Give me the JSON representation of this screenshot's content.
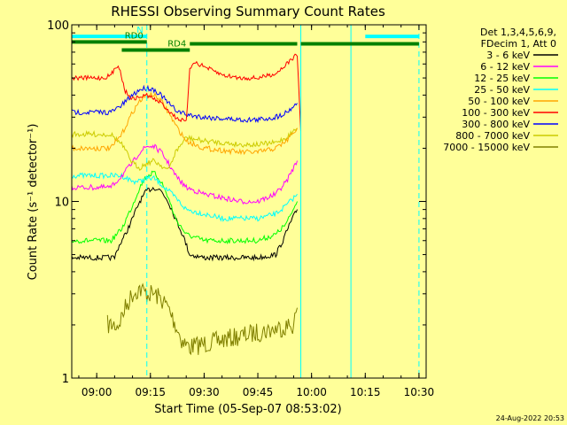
{
  "chart_data": {
    "type": "line",
    "title": "RHESSI Observing Summary Count Rates",
    "xlabel": "Start Time (05-Sep-07 08:53:02)",
    "ylabel": "Count Rate (s⁻¹ detector⁻¹)",
    "y_scale": "log",
    "ylim": [
      1,
      100
    ],
    "xlim": [
      "08:53:02",
      "10:32:00"
    ],
    "grid": false,
    "legend_position": "top-right",
    "x_ticks": [
      "09:00",
      "09:15",
      "09:30",
      "09:45",
      "10:00",
      "10:15",
      "10:30"
    ],
    "y_ticks": [
      "1",
      "10",
      "100"
    ],
    "legend_header": [
      "Det 1,3,4,5,6,9,",
      "FDecim 1, Att 0"
    ],
    "series": [
      {
        "name": "3 - 6 keV",
        "color": "#000000",
        "x": [
          "08:53",
          "09:05",
          "09:06",
          "09:08",
          "09:10",
          "09:12",
          "09:14",
          "09:16",
          "09:18",
          "09:20",
          "09:22",
          "09:24",
          "09:26",
          "09:30",
          "09:35",
          "09:40",
          "09:45",
          "09:50",
          "09:52",
          "09:54",
          "09:56"
        ],
        "y": [
          4.8,
          4.8,
          5.5,
          6.5,
          8.0,
          10.0,
          11.5,
          12.0,
          11.5,
          10.0,
          8.0,
          6.5,
          5.0,
          4.8,
          4.8,
          4.8,
          4.8,
          5.0,
          6.0,
          7.5,
          9.0
        ]
      },
      {
        "name": "6 - 12 keV",
        "color": "#ff00ff",
        "x": [
          "08:53",
          "09:04",
          "09:07",
          "09:10",
          "09:12",
          "09:14",
          "09:16",
          "09:18",
          "09:20",
          "09:22",
          "09:25",
          "09:30",
          "09:35",
          "09:40",
          "09:45",
          "09:50",
          "09:53",
          "09:56"
        ],
        "y": [
          12.0,
          12.0,
          14.0,
          16.5,
          19.0,
          20.5,
          20.5,
          19.0,
          16.5,
          14.0,
          12.0,
          11.0,
          10.5,
          10.0,
          10.0,
          11.0,
          13.0,
          17.0
        ]
      },
      {
        "name": "12 - 25 keV",
        "color": "#00ff00",
        "x": [
          "08:53",
          "09:04",
          "09:07",
          "09:10",
          "09:12",
          "09:14",
          "09:16",
          "09:18",
          "09:20",
          "09:22",
          "09:25",
          "09:30",
          "09:35",
          "09:40",
          "09:45",
          "09:50",
          "09:53",
          "09:56"
        ],
        "y": [
          6.0,
          6.0,
          7.0,
          9.5,
          12.0,
          14.0,
          14.5,
          13.0,
          10.5,
          8.0,
          6.5,
          6.0,
          6.0,
          6.0,
          6.0,
          6.5,
          7.5,
          10.0
        ]
      },
      {
        "name": "25 - 50 keV",
        "color": "#00ffff",
        "x": [
          "08:53",
          "09:04",
          "09:07",
          "09:10",
          "09:12",
          "09:14",
          "09:16",
          "09:18",
          "09:20",
          "09:22",
          "09:25",
          "09:30",
          "09:35",
          "09:40",
          "09:45",
          "09:50",
          "09:53",
          "09:56"
        ],
        "y": [
          14.0,
          14.0,
          14.0,
          13.0,
          13.0,
          13.5,
          13.5,
          12.5,
          11.5,
          10.5,
          9.0,
          8.5,
          8.0,
          8.0,
          8.0,
          8.5,
          9.5,
          11.0
        ]
      },
      {
        "name": "50 - 100 keV",
        "color": "#ffa500",
        "x": [
          "08:53",
          "09:04",
          "09:07",
          "09:10",
          "09:12",
          "09:14",
          "09:16",
          "09:18",
          "09:20",
          "09:22",
          "09:25",
          "09:30",
          "09:35",
          "09:40",
          "09:45",
          "09:50",
          "09:53",
          "09:56"
        ],
        "y": [
          20.0,
          20.0,
          24.0,
          32.0,
          37.0,
          40.0,
          40.0,
          37.0,
          32.0,
          27.0,
          22.0,
          20.0,
          19.5,
          19.0,
          19.0,
          20.0,
          22.0,
          26.0
        ]
      },
      {
        "name": "100 - 300 keV",
        "color": "#ff0000",
        "x": [
          "08:53",
          "09:02",
          "09:04",
          "09:06",
          "09:08",
          "09:10",
          "09:14",
          "09:18",
          "09:22",
          "09:25",
          "09:26",
          "09:27",
          "09:30",
          "09:35",
          "09:40",
          "09:45",
          "09:50",
          "09:53",
          "09:56",
          "09:57"
        ],
        "y": [
          50.0,
          50.0,
          52.0,
          60.0,
          42.0,
          38.0,
          40.0,
          36.0,
          30.0,
          28.0,
          55.0,
          62.0,
          58.0,
          52.0,
          50.0,
          50.0,
          53.0,
          60.0,
          68.0,
          25.0
        ]
      },
      {
        "name": "300 - 800 keV",
        "color": "#0000ff",
        "x": [
          "08:53",
          "09:04",
          "09:07",
          "09:10",
          "09:12",
          "09:14",
          "09:16",
          "09:18",
          "09:20",
          "09:22",
          "09:25",
          "09:30",
          "09:35",
          "09:40",
          "09:45",
          "09:50",
          "09:53",
          "09:56"
        ],
        "y": [
          32.0,
          32.0,
          35.0,
          40.0,
          43.0,
          44.0,
          43.0,
          40.0,
          36.0,
          33.0,
          31.0,
          30.0,
          29.5,
          29.0,
          29.0,
          30.0,
          32.0,
          36.0
        ]
      },
      {
        "name": "800 - 7000 keV",
        "color": "#cccc00",
        "x": [
          "08:53",
          "09:04",
          "09:07",
          "09:10",
          "09:12",
          "09:14",
          "09:16",
          "09:18",
          "09:20",
          "09:22",
          "09:25",
          "09:30",
          "09:35",
          "09:40",
          "09:45",
          "09:50",
          "09:53",
          "09:56"
        ],
        "y": [
          24.0,
          24.0,
          21.0,
          16.5,
          15.5,
          16.5,
          17.0,
          16.0,
          15.0,
          19.0,
          23.0,
          22.0,
          21.5,
          21.0,
          21.0,
          21.5,
          23.0,
          26.0
        ]
      },
      {
        "name": "7000 - 15000 keV",
        "color": "#808000",
        "x": [
          "09:03",
          "09:06",
          "09:08",
          "09:10",
          "09:12",
          "09:14",
          "09:16",
          "09:18",
          "09:20",
          "09:22",
          "09:24",
          "09:26",
          "09:55",
          "09:56"
        ],
        "y": [
          2.0,
          2.0,
          2.5,
          3.0,
          3.2,
          3.0,
          3.0,
          2.8,
          2.5,
          2.0,
          1.6,
          1.5,
          2.0,
          2.5
        ]
      }
    ],
    "annotations": [
      {
        "text": "N",
        "color": "#00ffff",
        "segments": [
          [
            "08:53",
            "09:14"
          ],
          [
            "10:15",
            "10:30"
          ]
        ],
        "level": 86
      },
      {
        "text": "RD0",
        "color": "#008000",
        "segments": [
          [
            "08:53",
            "09:14"
          ]
        ],
        "level": 80
      },
      {
        "text": "",
        "color": "#008000",
        "segments": [
          [
            "09:26",
            "09:56"
          ],
          [
            "09:57",
            "10:30"
          ]
        ],
        "level": 78
      },
      {
        "text": "RD4",
        "color": "#008000",
        "segments": [
          [
            "09:07",
            "09:26"
          ]
        ],
        "level": 72
      }
    ],
    "vertical_lines": [
      {
        "x": "09:14",
        "color": "#00ffff",
        "style": "dashed"
      },
      {
        "x": "09:57",
        "color": "#00ffff",
        "style": "solid"
      },
      {
        "x": "10:11",
        "color": "#00ffff",
        "style": "solid"
      },
      {
        "x": "10:30",
        "color": "#00ffff",
        "style": "dashed"
      }
    ]
  },
  "footer": {
    "date": "24-Aug-2022 20:53"
  }
}
